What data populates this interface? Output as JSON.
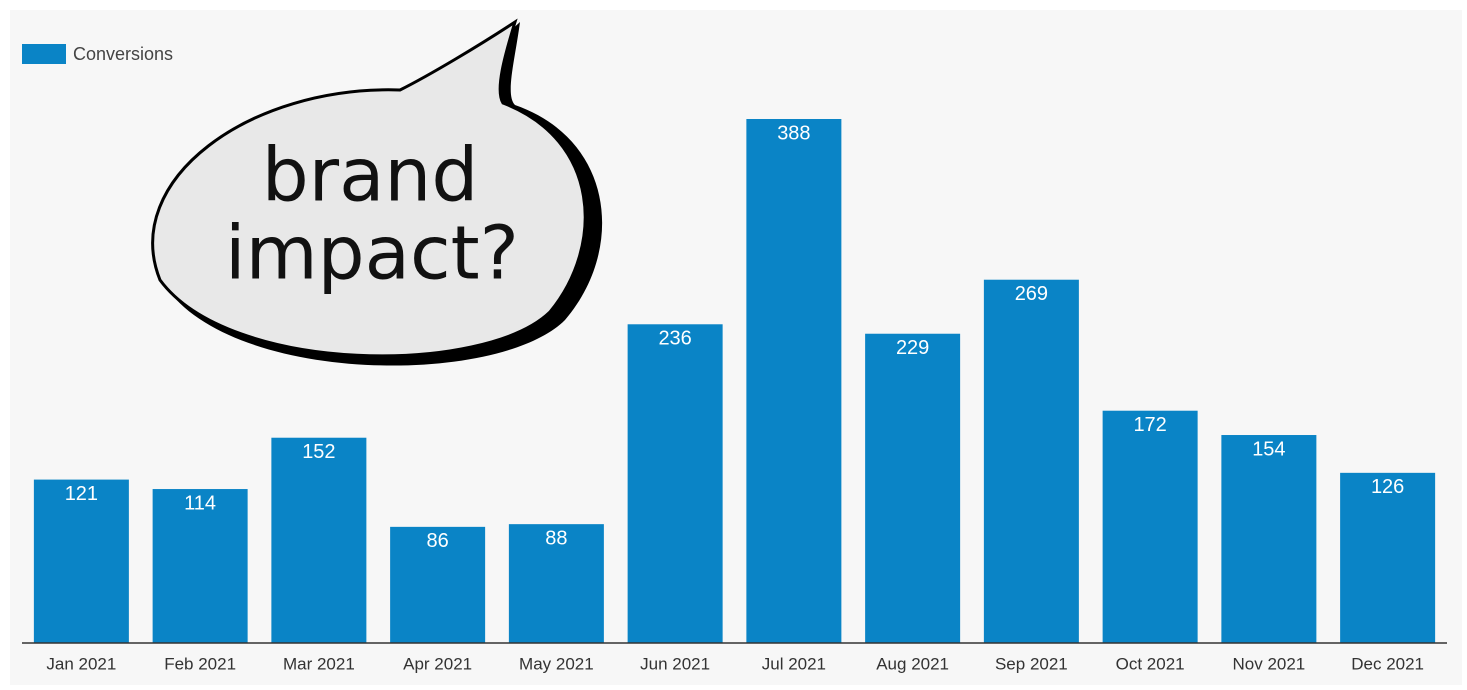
{
  "chart_data": {
    "type": "bar",
    "categories": [
      "Jan 2021",
      "Feb 2021",
      "Mar 2021",
      "Apr 2021",
      "May 2021",
      "Jun 2021",
      "Jul 2021",
      "Aug 2021",
      "Sep 2021",
      "Oct 2021",
      "Nov 2021",
      "Dec 2021"
    ],
    "series": [
      {
        "name": "Conversions",
        "color": "#0a84c6",
        "values": [
          121,
          114,
          152,
          86,
          88,
          236,
          388,
          229,
          269,
          172,
          154,
          126
        ]
      }
    ],
    "annotation": [
      "brand",
      "impact?"
    ],
    "legend": "top-left"
  }
}
